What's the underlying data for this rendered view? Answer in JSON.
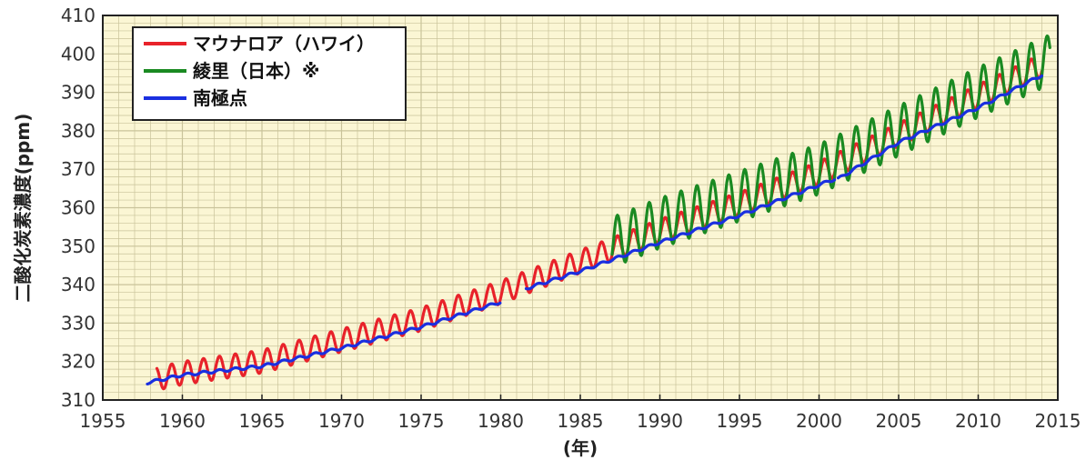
{
  "chart_data": {
    "type": "line",
    "xlabel": "(年)",
    "ylabel": "二酸化炭素濃度(ppm)",
    "xlim": [
      1955,
      2015
    ],
    "ylim": [
      310,
      410
    ],
    "xticks": [
      1955,
      1960,
      1965,
      1970,
      1975,
      1980,
      1985,
      1990,
      1995,
      2000,
      2005,
      2010,
      2015
    ],
    "yticks": [
      310,
      320,
      330,
      340,
      350,
      360,
      370,
      380,
      390,
      400,
      410
    ],
    "grid": true,
    "plot_background": "#fbf6d4",
    "grid_color": "#c9c39a",
    "legend_position": "top-left",
    "series": [
      {
        "name": "マウナロア（ハワイ）",
        "color": "#e8222a",
        "seasonal_amplitude_ppm": 3.0,
        "segments": [
          {
            "x": [
              1958.4,
              1960,
              1965,
              1970,
              1975,
              1980
            ],
            "y": [
              315.5,
              317.0,
              320.0,
              325.5,
              331.0,
              338.0
            ]
          },
          {
            "x": [
              1980,
              1985,
              1990,
              1995,
              2000,
              2005,
              2010,
              2014
            ],
            "y": [
              338.0,
              346.0,
              354.0,
              361.0,
              369.0,
              379.0,
              389.0,
              397.0
            ]
          }
        ]
      },
      {
        "name": "綾里（日本）※",
        "color": "#1a8a22",
        "seasonal_amplitude_ppm": 6.5,
        "segments": [
          {
            "x": [
              1987.0,
              1990,
              1995,
              2000,
              2005,
              2010,
              2014.5
            ],
            "y": [
              351.0,
              356.0,
              363.0,
              370.0,
              380.0,
              390.0,
              398.5
            ]
          }
        ]
      },
      {
        "name": "南極点",
        "color": "#1a2fe0",
        "seasonal_amplitude_ppm": 0.35,
        "segments": [
          {
            "x": [
              1957.8,
              1960,
              1965,
              1970,
              1975,
              1980
            ],
            "y": [
              314.5,
              316.5,
              318.8,
              323.5,
              329.0,
              335.5
            ]
          },
          {
            "x": [
              1981.6,
              1985,
              1990,
              1995,
              2001
            ],
            "y": [
              339.0,
              343.5,
              351.0,
              358.0,
              367.5
            ]
          },
          {
            "x": [
              2001.2,
              2005,
              2010,
              2014
            ],
            "y": [
              367.5,
              377.0,
              386.0,
              394.5
            ]
          }
        ]
      }
    ]
  }
}
